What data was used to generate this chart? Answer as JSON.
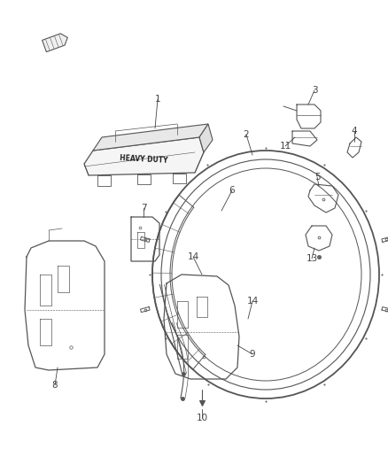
{
  "bg_color": "#ffffff",
  "line_color": "#555555",
  "label_color": "#444444",
  "fig_width": 4.38,
  "fig_height": 5.33,
  "dpi": 100
}
